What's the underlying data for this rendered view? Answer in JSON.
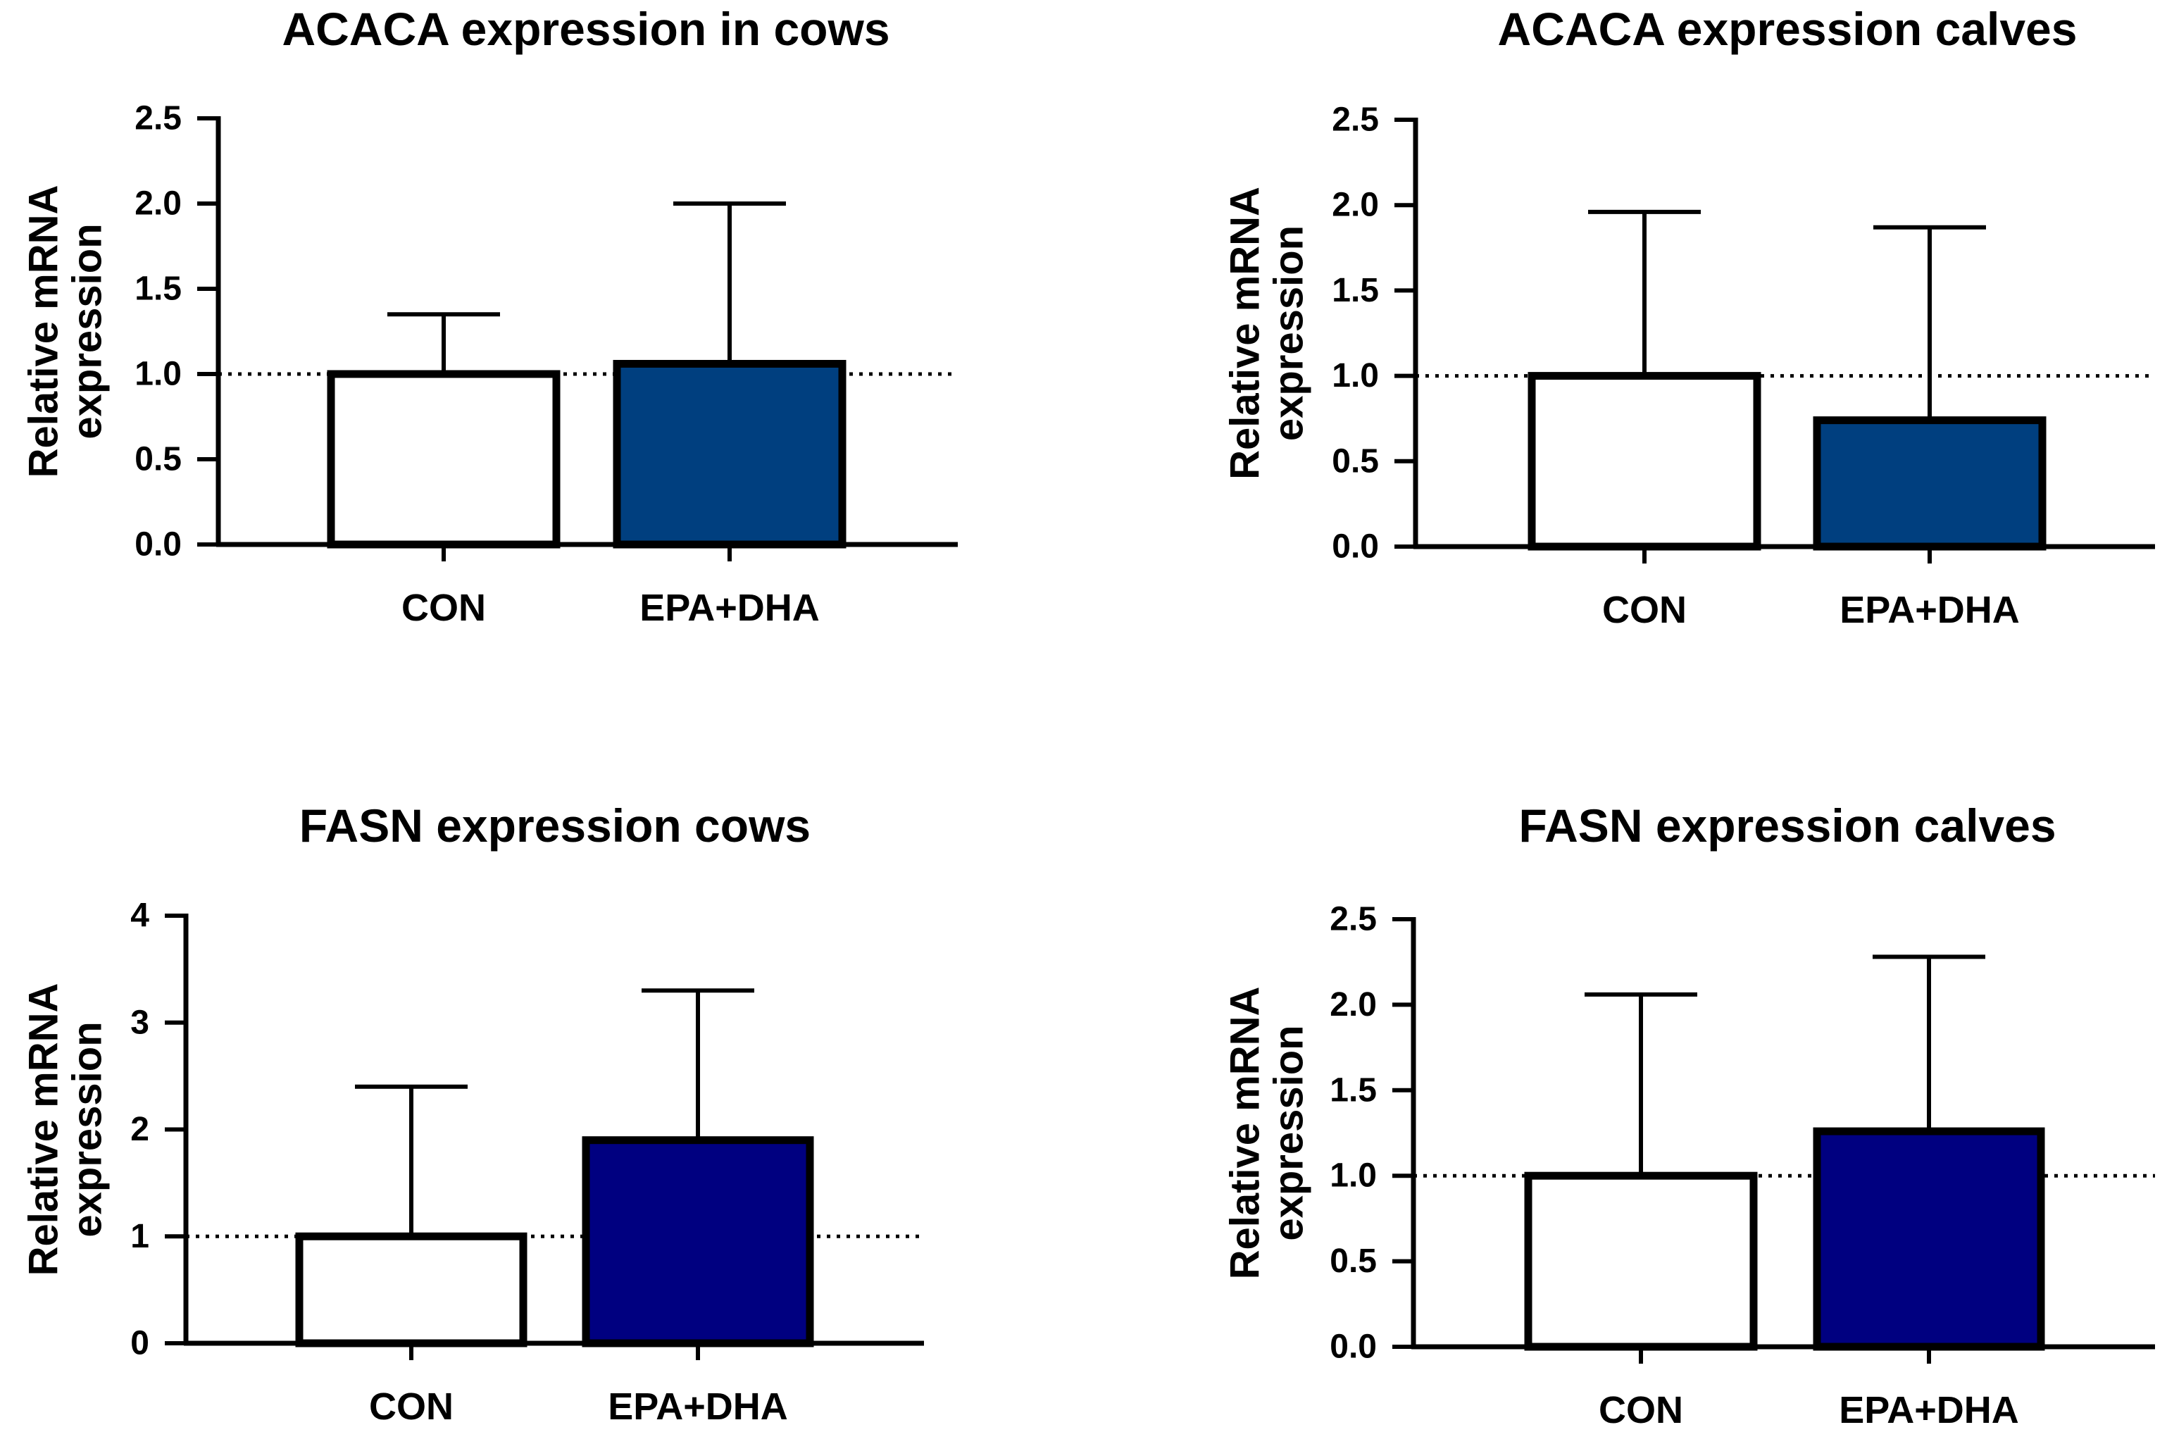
{
  "chart_data": [
    {
      "type": "bar",
      "title": "ACACA expression in cows",
      "ylabel": [
        "Relative mRNA",
        "expression"
      ],
      "xlabel": "",
      "categories": [
        "CON",
        "EPA+DHA"
      ],
      "values": [
        1.0,
        1.06
      ],
      "error_upper": [
        1.35,
        2.0
      ],
      "ylim": [
        0,
        2.5
      ],
      "yticks": [
        0,
        0.5,
        1.0,
        1.5,
        2.0,
        2.5
      ],
      "ytick_labels": [
        "0.0",
        "0.5",
        "1.0",
        "1.5",
        "2.0",
        "2.5"
      ],
      "reference_line": 1.0,
      "colors": [
        "#ffffff",
        "#003f7f"
      ]
    },
    {
      "type": "bar",
      "title": "ACACA expression calves",
      "ylabel": [
        "Relative mRNA",
        "expression"
      ],
      "xlabel": "",
      "categories": [
        "CON",
        "EPA+DHA"
      ],
      "values": [
        1.0,
        0.74
      ],
      "error_upper": [
        1.96,
        1.87
      ],
      "ylim": [
        0,
        2.5
      ],
      "yticks": [
        0,
        0.5,
        1.0,
        1.5,
        2.0,
        2.5
      ],
      "ytick_labels": [
        "0.0",
        "0.5",
        "1.0",
        "1.5",
        "2.0",
        "2.5"
      ],
      "reference_line": 1.0,
      "colors": [
        "#ffffff",
        "#003f7f"
      ]
    },
    {
      "type": "bar",
      "title": "FASN expression cows",
      "ylabel": [
        "Relative mRNA",
        "expression"
      ],
      "xlabel": "",
      "categories": [
        "CON",
        "EPA+DHA"
      ],
      "values": [
        1.0,
        1.9
      ],
      "error_upper": [
        2.4,
        3.3
      ],
      "ylim": [
        0,
        4
      ],
      "yticks": [
        0,
        1,
        2,
        3,
        4
      ],
      "ytick_labels": [
        "0",
        "1",
        "2",
        "3",
        "4"
      ],
      "reference_line": 1.0,
      "colors": [
        "#ffffff",
        "#000080"
      ]
    },
    {
      "type": "bar",
      "title": "FASN expression calves",
      "ylabel": [
        "Relative mRNA",
        "expression"
      ],
      "xlabel": "",
      "categories": [
        "CON",
        "EPA+DHA"
      ],
      "values": [
        1.0,
        1.26
      ],
      "error_upper": [
        2.06,
        2.28
      ],
      "ylim": [
        0,
        2.5
      ],
      "yticks": [
        0,
        0.5,
        1.0,
        1.5,
        2.0,
        2.5
      ],
      "ytick_labels": [
        "0.0",
        "0.5",
        "1.0",
        "1.5",
        "2.0",
        "2.5"
      ],
      "reference_line": 1.0,
      "colors": [
        "#ffffff",
        "#000080"
      ]
    }
  ]
}
